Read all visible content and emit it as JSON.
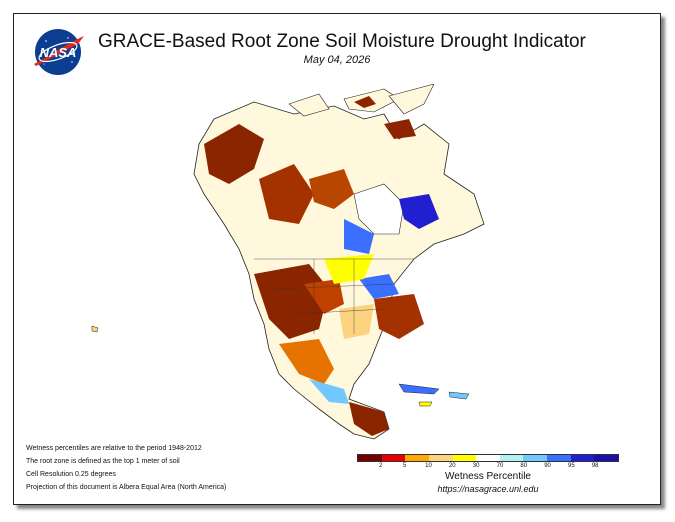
{
  "header": {
    "logo_text": "NASA",
    "title": "GRACE-Based Root Zone Soil Moisture Drought Indicator",
    "date": "May 04, 2026"
  },
  "notes": [
    "Wetness percentiles are relative to the period 1948-2012",
    "The root zone is defined as the top 1 meter of soil",
    "Cell Resolution 0.25 degrees",
    "Projection of this document is Albera Equal Area (North America)"
  ],
  "legend": {
    "title": "Wetness Percentile",
    "ticks": [
      "2",
      "5",
      "10",
      "20",
      "30",
      "70",
      "80",
      "90",
      "95",
      "98"
    ],
    "colors": [
      "#730000",
      "#e60000",
      "#ffaa00",
      "#fcd37f",
      "#ffff00",
      "#ffffff",
      "#b5f0f0",
      "#70c8ff",
      "#3a6fff",
      "#2020d0",
      "#1a0fa8"
    ]
  },
  "url": "https://nasagrace.unl.edu"
}
